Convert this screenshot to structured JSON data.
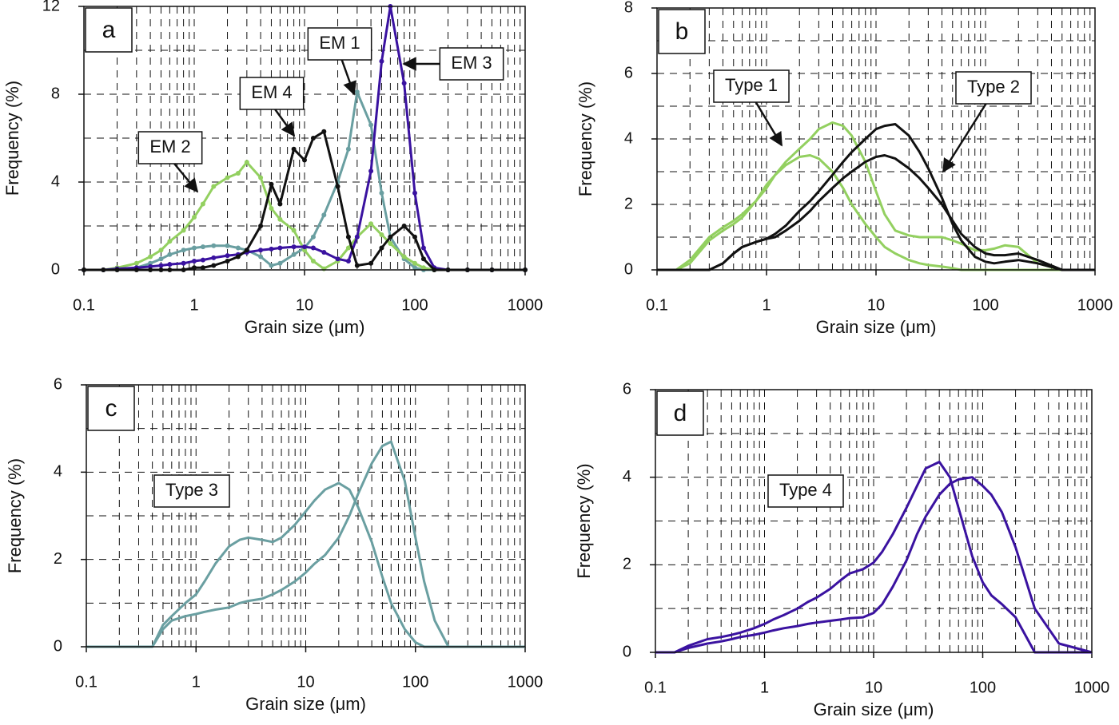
{
  "chart_data": [
    {
      "type": "line",
      "panel_label": "a",
      "xlabel": "Grain size  (μm)",
      "ylabel": "Frequency (%)",
      "xscale": "log",
      "grid": true,
      "minor_grid": true,
      "markers": true,
      "xlim": [
        0.1,
        1000
      ],
      "xticks": [
        0.1,
        1,
        10,
        100,
        1000
      ],
      "ylim": [
        0,
        12
      ],
      "yticks": [
        0,
        4,
        8,
        12
      ],
      "x": [
        0.1,
        0.15,
        0.2,
        0.3,
        0.4,
        0.5,
        0.6,
        0.8,
        1,
        1.2,
        1.5,
        2,
        2.5,
        3,
        4,
        5,
        6,
        8,
        10,
        12,
        15,
        20,
        25,
        30,
        40,
        50,
        60,
        80,
        100,
        120,
        150,
        200,
        300,
        500,
        1000
      ],
      "series": [
        {
          "name": "EM 1",
          "color": "#6a9fa1",
          "values": [
            0,
            0,
            0,
            0.1,
            0.3,
            0.5,
            0.7,
            0.9,
            1.0,
            1.05,
            1.1,
            1.1,
            1.0,
            0.9,
            0.6,
            0.2,
            0.3,
            0.7,
            1.0,
            1.5,
            2.5,
            4.0,
            5.5,
            8.1,
            6.6,
            3.5,
            1.5,
            0.5,
            0.1,
            0,
            0,
            0,
            0,
            0,
            0
          ]
        },
        {
          "name": "EM 2",
          "color": "#93d060",
          "values": [
            0,
            0,
            0.1,
            0.3,
            0.6,
            0.9,
            1.3,
            1.8,
            2.4,
            3.0,
            3.8,
            4.2,
            4.4,
            4.9,
            4.2,
            2.8,
            2.3,
            1.8,
            0.9,
            0.4,
            0.05,
            0.4,
            1.0,
            1.5,
            2.1,
            1.6,
            1.2,
            0.6,
            0.3,
            0.1,
            0,
            0,
            0,
            0,
            0
          ]
        },
        {
          "name": "EM 3",
          "color": "#3a12a0",
          "values": [
            0,
            0,
            0.05,
            0.1,
            0.15,
            0.2,
            0.25,
            0.3,
            0.4,
            0.45,
            0.55,
            0.65,
            0.7,
            0.8,
            0.9,
            0.95,
            1.0,
            1.05,
            1.05,
            1.0,
            0.8,
            0.5,
            0.4,
            1.5,
            4.5,
            9.5,
            12.0,
            8.5,
            3.5,
            1.0,
            0.1,
            0,
            0,
            0,
            0
          ]
        },
        {
          "name": "EM 4",
          "color": "#111111",
          "values": [
            0,
            0,
            0,
            0,
            0,
            0,
            0,
            0,
            0.1,
            0.1,
            0.2,
            0.4,
            0.6,
            0.9,
            2.0,
            3.9,
            3.0,
            5.5,
            5.0,
            6.0,
            6.3,
            3.8,
            1.5,
            0.2,
            0.3,
            1.0,
            1.5,
            2.0,
            1.5,
            0.5,
            0,
            0,
            0,
            0,
            0
          ]
        }
      ]
    },
    {
      "type": "line",
      "panel_label": "b",
      "xlabel": "Grain size  (μm)",
      "ylabel": "Frequency (%)",
      "xscale": "log",
      "grid": true,
      "minor_grid": true,
      "markers": false,
      "xlim": [
        0.1,
        1000
      ],
      "xticks": [
        0.1,
        1,
        10,
        100,
        1000
      ],
      "ylim": [
        0,
        8
      ],
      "yticks": [
        0,
        2,
        4,
        6,
        8
      ],
      "annotations": [
        "Type 1",
        "Type 2"
      ],
      "x": [
        0.1,
        0.15,
        0.2,
        0.3,
        0.4,
        0.5,
        0.6,
        0.8,
        1,
        1.2,
        1.5,
        2,
        2.5,
        3,
        4,
        5,
        6,
        8,
        10,
        12,
        15,
        20,
        25,
        30,
        40,
        50,
        60,
        80,
        100,
        120,
        150,
        200,
        300,
        500,
        1000
      ],
      "series": [
        {
          "color": "#93d060",
          "values": [
            0,
            0,
            0.3,
            1.0,
            1.3,
            1.5,
            1.7,
            2.1,
            2.5,
            2.9,
            3.3,
            3.7,
            4.0,
            4.3,
            4.5,
            4.4,
            4.1,
            3.3,
            2.4,
            1.7,
            1.2,
            1.05,
            1.0,
            1.0,
            1.0,
            0.9,
            0.8,
            0.6,
            0.6,
            0.65,
            0.75,
            0.7,
            0.2,
            0,
            0
          ]
        },
        {
          "color": "#93d060",
          "values": [
            0,
            0,
            0.2,
            0.9,
            1.2,
            1.4,
            1.6,
            2.1,
            2.6,
            2.9,
            3.2,
            3.45,
            3.5,
            3.4,
            3.0,
            2.5,
            2.0,
            1.4,
            1.0,
            0.7,
            0.5,
            0.3,
            0.2,
            0.15,
            0.1,
            0.05,
            0,
            0,
            0,
            0,
            0,
            0,
            0,
            0,
            0
          ]
        },
        {
          "color": "#111111",
          "values": [
            0,
            0,
            0,
            0,
            0.2,
            0.5,
            0.7,
            0.85,
            0.95,
            1.1,
            1.35,
            1.8,
            2.1,
            2.4,
            2.9,
            3.3,
            3.6,
            4.0,
            4.3,
            4.4,
            4.45,
            4.1,
            3.6,
            3.1,
            2.2,
            1.4,
            0.9,
            0.4,
            0.25,
            0.2,
            0.25,
            0.3,
            0.2,
            0,
            0
          ]
        },
        {
          "color": "#111111",
          "values": [
            0,
            0,
            0,
            0,
            0.2,
            0.5,
            0.7,
            0.85,
            0.95,
            1.0,
            1.2,
            1.5,
            1.8,
            2.1,
            2.5,
            2.8,
            3.0,
            3.3,
            3.45,
            3.5,
            3.4,
            3.1,
            2.8,
            2.5,
            2.0,
            1.5,
            1.1,
            0.7,
            0.5,
            0.45,
            0.45,
            0.5,
            0.3,
            0,
            0
          ]
        }
      ]
    },
    {
      "type": "line",
      "panel_label": "c",
      "xlabel": "Grain size  (μm)",
      "ylabel": "Frequency (%)",
      "xscale": "log",
      "grid": true,
      "minor_grid": true,
      "markers": false,
      "xlim": [
        0.1,
        1000
      ],
      "xticks": [
        0.1,
        1,
        10,
        100,
        1000
      ],
      "ylim": [
        0,
        6
      ],
      "yticks": [
        0,
        2,
        4,
        6
      ],
      "annotations": [
        "Type 3"
      ],
      "x": [
        0.1,
        0.15,
        0.2,
        0.3,
        0.4,
        0.5,
        0.6,
        0.8,
        1,
        1.2,
        1.5,
        2,
        2.5,
        3,
        4,
        5,
        6,
        8,
        10,
        12,
        15,
        20,
        25,
        30,
        40,
        50,
        60,
        80,
        100,
        120,
        150,
        200,
        300,
        500,
        1000
      ],
      "series": [
        {
          "color": "#6a9fa1",
          "values": [
            0,
            0,
            0,
            0,
            0,
            0.4,
            0.6,
            0.7,
            0.75,
            0.8,
            0.85,
            0.9,
            1.0,
            1.05,
            1.1,
            1.2,
            1.3,
            1.5,
            1.7,
            1.9,
            2.1,
            2.5,
            3.0,
            3.5,
            4.2,
            4.6,
            4.7,
            3.8,
            2.5,
            1.5,
            0.6,
            0,
            0,
            0,
            0
          ]
        },
        {
          "color": "#6a9fa1",
          "values": [
            0,
            0,
            0,
            0,
            0,
            0.5,
            0.7,
            1.0,
            1.2,
            1.5,
            1.9,
            2.3,
            2.45,
            2.5,
            2.45,
            2.4,
            2.5,
            2.8,
            3.1,
            3.35,
            3.6,
            3.75,
            3.6,
            3.2,
            2.4,
            1.6,
            1.0,
            0.4,
            0.1,
            0,
            0,
            0,
            0,
            0,
            0
          ]
        }
      ]
    },
    {
      "type": "line",
      "panel_label": "d",
      "xlabel": "Grain size  (μm)",
      "ylabel": "Frequency (%)",
      "xscale": "log",
      "grid": true,
      "minor_grid": true,
      "markers": false,
      "xlim": [
        0.1,
        1000
      ],
      "xticks": [
        0.1,
        1,
        10,
        100,
        1000
      ],
      "ylim": [
        0,
        6
      ],
      "yticks": [
        0,
        2,
        4,
        6
      ],
      "annotations": [
        "Type 4"
      ],
      "x": [
        0.1,
        0.15,
        0.2,
        0.3,
        0.4,
        0.5,
        0.6,
        0.8,
        1,
        1.2,
        1.5,
        2,
        2.5,
        3,
        4,
        5,
        6,
        8,
        10,
        12,
        15,
        20,
        25,
        30,
        40,
        50,
        60,
        80,
        100,
        120,
        150,
        200,
        300,
        500,
        1000
      ],
      "series": [
        {
          "color": "#3a12a0",
          "values": [
            0,
            0,
            0.15,
            0.3,
            0.35,
            0.4,
            0.45,
            0.55,
            0.65,
            0.75,
            0.85,
            1.0,
            1.15,
            1.25,
            1.45,
            1.65,
            1.8,
            1.9,
            2.05,
            2.3,
            2.7,
            3.3,
            3.8,
            4.2,
            4.35,
            4.0,
            3.3,
            2.2,
            1.6,
            1.3,
            1.1,
            0.8,
            0,
            0,
            0
          ]
        },
        {
          "color": "#3a12a0",
          "values": [
            0,
            0,
            0.1,
            0.2,
            0.25,
            0.3,
            0.35,
            0.4,
            0.45,
            0.5,
            0.55,
            0.6,
            0.65,
            0.68,
            0.72,
            0.75,
            0.78,
            0.8,
            0.9,
            1.1,
            1.5,
            2.1,
            2.7,
            3.1,
            3.6,
            3.85,
            3.95,
            4.0,
            3.8,
            3.6,
            3.2,
            2.4,
            1.0,
            0.2,
            0
          ]
        }
      ]
    }
  ]
}
